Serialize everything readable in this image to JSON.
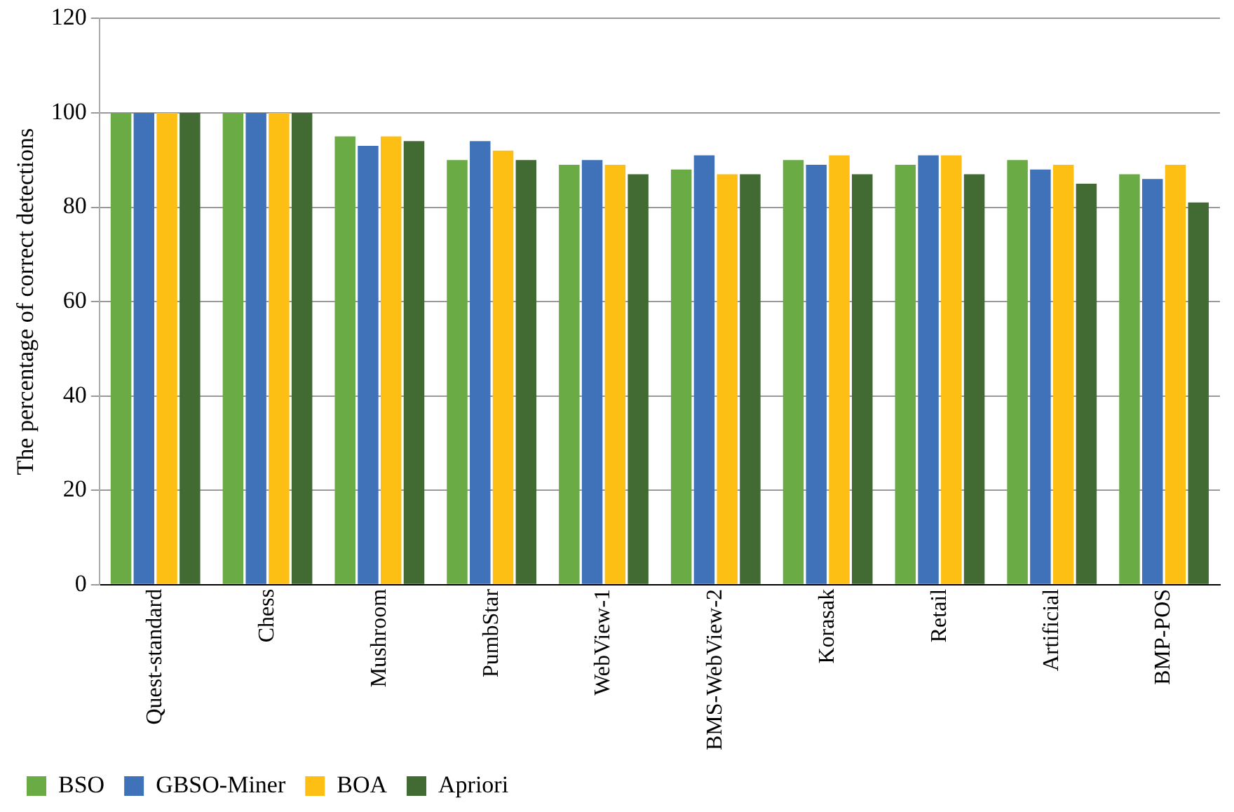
{
  "chart_data": {
    "type": "bar",
    "ylabel": "The percentage of correct detections",
    "categories": [
      "Quest-standard",
      "Chess",
      "Mushroom",
      "PumbStar",
      "WebView-1",
      "BMS-WebView-2",
      "Korasak",
      "Retail",
      "Artificial",
      "BMP-POS"
    ],
    "series": [
      {
        "name": "BSO",
        "color": "#6aab46",
        "values": [
          100,
          100,
          95,
          90,
          89,
          88,
          90,
          89,
          90,
          87
        ]
      },
      {
        "name": "GBSO-Miner",
        "color": "#4072b9",
        "values": [
          100,
          100,
          93,
          94,
          90,
          91,
          89,
          91,
          88,
          86
        ]
      },
      {
        "name": "BOA",
        "color": "#fdbf13",
        "values": [
          100,
          100,
          95,
          92,
          89,
          87,
          91,
          91,
          89,
          89
        ]
      },
      {
        "name": "Apriori",
        "color": "#426a33",
        "values": [
          100,
          100,
          94,
          90,
          87,
          87,
          87,
          87,
          85,
          81
        ]
      }
    ],
    "ylim": [
      0,
      120
    ],
    "yticks": [
      0,
      20,
      40,
      60,
      80,
      100,
      120
    ],
    "grid": "y",
    "legend": "bottom"
  }
}
